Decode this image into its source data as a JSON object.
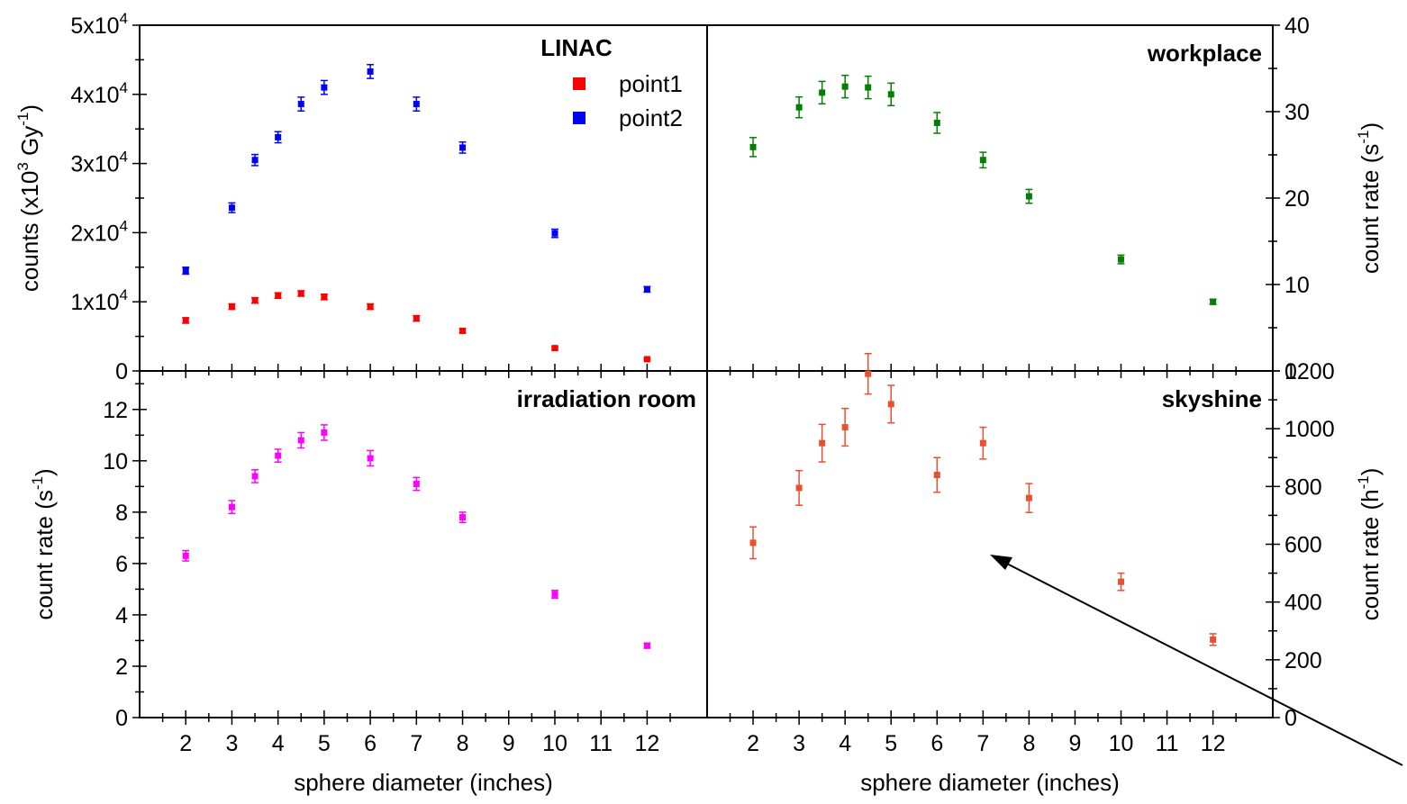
{
  "chart_data": [
    {
      "type": "scatter",
      "panel": "top-left",
      "title": "",
      "xlabel": "",
      "ylabel": "counts (x10<sup>3</sup> Gy<sup>-1</sup>)",
      "ylabel_parts": {
        "base": "counts (x10",
        "sup1": "3",
        "mid": " Gy",
        "sup2": "-1",
        "end": ")"
      },
      "xlim": [
        1,
        13.3
      ],
      "ylim": [
        0,
        50000
      ],
      "y_ticks": [
        {
          "v": 0,
          "label": "0"
        },
        {
          "v": 10000,
          "label": "1x10",
          "exp": "4"
        },
        {
          "v": 20000,
          "label": "2x10",
          "exp": "4"
        },
        {
          "v": 30000,
          "label": "3x10",
          "exp": "4"
        },
        {
          "v": 40000,
          "label": "4x10",
          "exp": "4"
        },
        {
          "v": 50000,
          "label": "5x10",
          "exp": "4"
        }
      ],
      "legend": {
        "title": "LINAC",
        "position": "top-right"
      },
      "series": [
        {
          "name": "point1",
          "color": "#ff0000",
          "x": [
            2,
            3,
            3.5,
            4,
            4.5,
            5,
            6,
            7,
            8,
            10,
            12
          ],
          "y": [
            7300,
            9300,
            10200,
            10900,
            11200,
            10700,
            9300,
            7600,
            5800,
            3300,
            1700
          ],
          "err": [
            400,
            400,
            400,
            400,
            400,
            400,
            400,
            400,
            300,
            200,
            150
          ]
        },
        {
          "name": "point2",
          "color": "#0000ff",
          "x": [
            2,
            3,
            3.5,
            4,
            4.5,
            5,
            6,
            7,
            8,
            10,
            12
          ],
          "y": [
            14500,
            23600,
            30500,
            33800,
            38600,
            41000,
            43300,
            38600,
            32300,
            19900,
            11800
          ],
          "err": [
            500,
            700,
            800,
            800,
            1000,
            1000,
            1000,
            1000,
            800,
            600,
            400
          ]
        }
      ]
    },
    {
      "type": "scatter",
      "panel": "top-right",
      "title": "workplace",
      "xlabel": "",
      "ylabel": "count rate (s<sup>-1</sup>)",
      "ylabel_parts": {
        "base": "count rate (s",
        "sup1": "-1",
        "end": ")"
      },
      "xlim": [
        1,
        13.3
      ],
      "ylim": [
        0,
        40
      ],
      "y_ticks": [
        {
          "v": 0,
          "label": "0"
        },
        {
          "v": 10,
          "label": "10"
        },
        {
          "v": 20,
          "label": "20"
        },
        {
          "v": 30,
          "label": "30"
        },
        {
          "v": 40,
          "label": "40"
        }
      ],
      "series": [
        {
          "color": "#008000",
          "x": [
            2,
            3,
            3.5,
            4,
            4.5,
            5,
            6,
            7,
            8,
            10,
            12
          ],
          "y": [
            25.9,
            30.5,
            32.2,
            32.9,
            32.8,
            32.0,
            28.7,
            24.4,
            20.2,
            12.9,
            8.0
          ],
          "err": [
            1.1,
            1.2,
            1.3,
            1.3,
            1.3,
            1.3,
            1.2,
            0.9,
            0.8,
            0.5,
            0.3
          ]
        }
      ]
    },
    {
      "type": "scatter",
      "panel": "bottom-left",
      "title": "irradiation room",
      "xlabel": "sphere diameter (inches)",
      "ylabel": "count rate (s<sup>-1</sup>)",
      "ylabel_parts": {
        "base": "count rate (s",
        "sup1": "-1",
        "end": ")"
      },
      "xlim": [
        1,
        13.3
      ],
      "ylim": [
        0,
        13.5
      ],
      "x_ticks": [
        2,
        3,
        4,
        5,
        6,
        7,
        8,
        9,
        10,
        11,
        12
      ],
      "y_ticks": [
        {
          "v": 0,
          "label": "0"
        },
        {
          "v": 2,
          "label": "2"
        },
        {
          "v": 4,
          "label": "4"
        },
        {
          "v": 6,
          "label": "6"
        },
        {
          "v": 8,
          "label": "8"
        },
        {
          "v": 10,
          "label": "10"
        },
        {
          "v": 12,
          "label": "12"
        }
      ],
      "series": [
        {
          "color": "#ff00ff",
          "x": [
            2,
            3,
            3.5,
            4,
            4.5,
            5,
            6,
            7,
            8,
            10,
            12
          ],
          "y": [
            6.3,
            8.2,
            9.4,
            10.2,
            10.8,
            11.1,
            10.1,
            9.1,
            7.8,
            4.8,
            2.8
          ],
          "err": [
            0.2,
            0.25,
            0.25,
            0.25,
            0.3,
            0.3,
            0.3,
            0.25,
            0.2,
            0.15,
            0.1
          ]
        }
      ]
    },
    {
      "type": "scatter",
      "panel": "bottom-right",
      "title": "skyshine",
      "xlabel": "sphere diameter (inches)",
      "ylabel": "count rate (h<sup>-1</sup>)",
      "ylabel_parts": {
        "base": "count rate (h",
        "sup1": "-1",
        "end": ")"
      },
      "xlim": [
        1,
        13.3
      ],
      "ylim": [
        0,
        1200
      ],
      "x_ticks": [
        2,
        3,
        4,
        5,
        6,
        7,
        8,
        9,
        10,
        11,
        12
      ],
      "y_ticks": [
        {
          "v": 0,
          "label": "0"
        },
        {
          "v": 200,
          "label": "200"
        },
        {
          "v": 400,
          "label": "400"
        },
        {
          "v": 600,
          "label": "600"
        },
        {
          "v": 800,
          "label": "800"
        },
        {
          "v": 1000,
          "label": "1000"
        },
        {
          "v": 1200,
          "label": "1200"
        }
      ],
      "series": [
        {
          "color": "#e85030",
          "x": [
            2,
            3,
            3.5,
            4,
            4.5,
            5,
            6,
            7,
            8,
            10,
            12
          ],
          "y": [
            605,
            795,
            950,
            1005,
            1190,
            1085,
            840,
            950,
            760,
            470,
            270
          ],
          "err": [
            55,
            60,
            65,
            65,
            70,
            65,
            60,
            55,
            50,
            30,
            20
          ]
        }
      ]
    }
  ]
}
